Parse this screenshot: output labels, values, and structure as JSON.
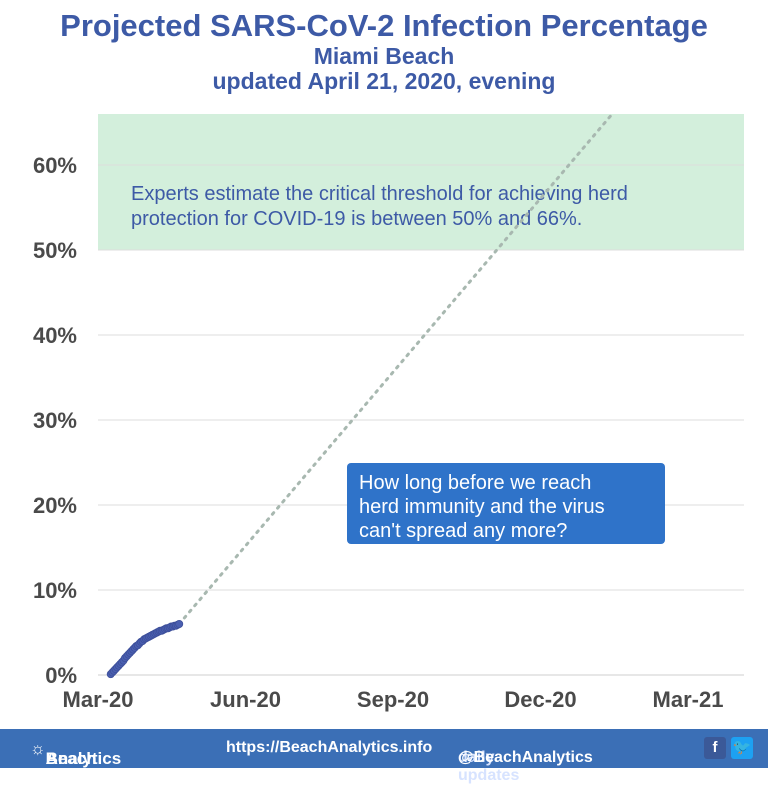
{
  "title": "Projected SARS-CoV-2 Infection Percentage",
  "subtitle": "Miami Beach",
  "updated": "updated April 21, 2020, evening",
  "footer": {
    "brand_prefix": "Beach",
    "brand_suffix": "Analytics",
    "url": "https://BeachAnalytics.info",
    "updates_label": "daily updates",
    "handle": "@BeachAnalytics",
    "facebook_icon": "f",
    "twitter_icon": "🐦"
  },
  "colors": {
    "title": "#3d5aa6",
    "points": "#4a5fb0",
    "band": "#d3efdc",
    "trend": "#a8b8b0",
    "callout": "#2f73c9",
    "footer": "#3b6fb6"
  },
  "chart_data": {
    "type": "scatter",
    "x_ticks": [
      "Mar-20",
      "Jun-20",
      "Sep-20",
      "Dec-20",
      "Mar-21"
    ],
    "y_ticks": [
      "0%",
      "10%",
      "20%",
      "30%",
      "40%",
      "50%",
      "60%"
    ],
    "ylim": [
      0,
      66
    ],
    "grid": true,
    "band": {
      "from": 50,
      "to": 66,
      "text_line1": "Experts estimate the critical threshold for achieving herd",
      "text_line2": "protection for COVID-19 is between 50% and 66%."
    },
    "callout": {
      "line1": "How long before we reach",
      "line2": "herd immunity and the virus",
      "line3": "can't spread any more?"
    },
    "series": [
      {
        "x": [
          "2020-03-09",
          "2020-03-10",
          "2020-03-11",
          "2020-03-12",
          "2020-03-13",
          "2020-03-14",
          "2020-03-15",
          "2020-03-16",
          "2020-03-17",
          "2020-03-18",
          "2020-03-19",
          "2020-03-20",
          "2020-03-21",
          "2020-03-22",
          "2020-03-23",
          "2020-03-24",
          "2020-03-25",
          "2020-03-26",
          "2020-03-27",
          "2020-03-28",
          "2020-03-29",
          "2020-03-30",
          "2020-03-31",
          "2020-04-01",
          "2020-04-02",
          "2020-04-03",
          "2020-04-04",
          "2020-04-05",
          "2020-04-06",
          "2020-04-07",
          "2020-04-08",
          "2020-04-09",
          "2020-04-10",
          "2020-04-11",
          "2020-04-12",
          "2020-04-13",
          "2020-04-14",
          "2020-04-15",
          "2020-04-16",
          "2020-04-17",
          "2020-04-18",
          "2020-04-19",
          "2020-04-20",
          "2020-04-21"
        ],
        "values": [
          0.1,
          0.3,
          0.5,
          0.7,
          0.9,
          1.1,
          1.3,
          1.5,
          1.7,
          2.0,
          2.2,
          2.4,
          2.6,
          2.8,
          3.0,
          3.2,
          3.4,
          3.5,
          3.7,
          3.9,
          4.0,
          4.2,
          4.3,
          4.4,
          4.5,
          4.6,
          4.7,
          4.8,
          4.9,
          5.0,
          5.1,
          5.2,
          5.2,
          5.3,
          5.4,
          5.5,
          5.5,
          5.6,
          5.7,
          5.7,
          5.8,
          5.8,
          5.9,
          6.0
        ]
      }
    ],
    "trend_end": {
      "x": "2021-01-18",
      "y": 66
    }
  }
}
